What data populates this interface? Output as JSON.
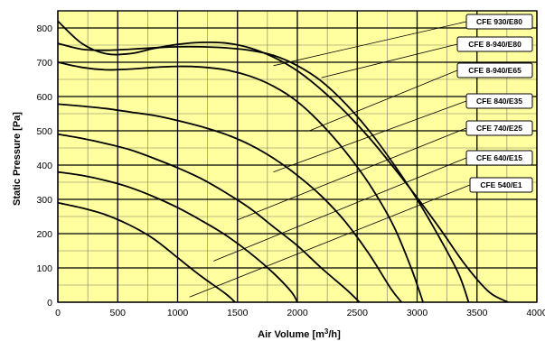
{
  "chart_data": {
    "type": "line",
    "title": "",
    "xlabel_main": "Air Volume [m",
    "xlabel_sup": "3",
    "xlabel_tail": "/h]",
    "ylabel": "Static Pressure [Pa]",
    "xlim": [
      0,
      4000
    ],
    "ylim": [
      0,
      850
    ],
    "x_ticks": [
      0,
      500,
      1000,
      1500,
      2000,
      2500,
      3000,
      3500,
      4000
    ],
    "x_tick_labels": [
      "0",
      "500",
      "1000",
      "1500",
      "2000",
      "2500",
      "3000",
      "3500",
      "4000"
    ],
    "y_ticks": [
      0,
      100,
      200,
      300,
      400,
      500,
      600,
      700,
      800
    ],
    "y_tick_labels": [
      "0",
      "100",
      "200",
      "300",
      "400",
      "500",
      "600",
      "700",
      "800"
    ],
    "minor_grid_x_step": 250,
    "minor_grid_y_step": 50,
    "grid": true,
    "plot_background": "#ffffa0",
    "series": [
      {
        "name": "CFE 930/E80",
        "leader": [
          1800,
          690
        ],
        "points": [
          [
            0,
            820
          ],
          [
            200,
            755
          ],
          [
            400,
            725
          ],
          [
            600,
            725
          ],
          [
            800,
            740
          ],
          [
            1000,
            752
          ],
          [
            1200,
            758
          ],
          [
            1400,
            756
          ],
          [
            1600,
            742
          ],
          [
            1800,
            715
          ],
          [
            2000,
            675
          ],
          [
            2200,
            620
          ],
          [
            2400,
            555
          ],
          [
            2600,
            480
          ],
          [
            2800,
            395
          ],
          [
            3000,
            305
          ],
          [
            3200,
            210
          ],
          [
            3400,
            110
          ],
          [
            3600,
            30
          ],
          [
            3760,
            0
          ]
        ]
      },
      {
        "name": "CFE 8-940/E80",
        "leader": [
          2200,
          655
        ],
        "points": [
          [
            0,
            755
          ],
          [
            200,
            738
          ],
          [
            400,
            735
          ],
          [
            600,
            738
          ],
          [
            800,
            742
          ],
          [
            1000,
            745
          ],
          [
            1200,
            745
          ],
          [
            1400,
            742
          ],
          [
            1600,
            735
          ],
          [
            1800,
            720
          ],
          [
            2000,
            690
          ],
          [
            2200,
            645
          ],
          [
            2400,
            580
          ],
          [
            2600,
            500
          ],
          [
            2800,
            405
          ],
          [
            3000,
            300
          ],
          [
            3200,
            180
          ],
          [
            3350,
            80
          ],
          [
            3430,
            0
          ]
        ]
      },
      {
        "name": "CFE 8-940/E65",
        "leader": [
          2100,
          500
        ],
        "points": [
          [
            0,
            700
          ],
          [
            200,
            685
          ],
          [
            400,
            678
          ],
          [
            600,
            680
          ],
          [
            800,
            685
          ],
          [
            1000,
            688
          ],
          [
            1200,
            686
          ],
          [
            1400,
            678
          ],
          [
            1600,
            660
          ],
          [
            1800,
            630
          ],
          [
            2000,
            585
          ],
          [
            2200,
            520
          ],
          [
            2400,
            440
          ],
          [
            2600,
            345
          ],
          [
            2800,
            225
          ],
          [
            2950,
            100
          ],
          [
            3050,
            0
          ]
        ]
      },
      {
        "name": "CFE 840/E35",
        "leader": [
          1800,
          380
        ],
        "points": [
          [
            0,
            578
          ],
          [
            200,
            572
          ],
          [
            400,
            565
          ],
          [
            600,
            555
          ],
          [
            800,
            545
          ],
          [
            1000,
            530
          ],
          [
            1200,
            512
          ],
          [
            1400,
            490
          ],
          [
            1600,
            460
          ],
          [
            1800,
            420
          ],
          [
            2000,
            370
          ],
          [
            2200,
            310
          ],
          [
            2400,
            235
          ],
          [
            2600,
            140
          ],
          [
            2780,
            40
          ],
          [
            2870,
            0
          ]
        ]
      },
      {
        "name": "CFE 740/E25",
        "leader": [
          1500,
          240
        ],
        "points": [
          [
            0,
            490
          ],
          [
            200,
            478
          ],
          [
            400,
            463
          ],
          [
            600,
            445
          ],
          [
            800,
            420
          ],
          [
            1000,
            392
          ],
          [
            1200,
            360
          ],
          [
            1400,
            320
          ],
          [
            1600,
            275
          ],
          [
            1800,
            220
          ],
          [
            2000,
            165
          ],
          [
            2200,
            100
          ],
          [
            2400,
            40
          ],
          [
            2520,
            0
          ]
        ]
      },
      {
        "name": "CFE 640/E15",
        "leader": [
          1300,
          120
        ],
        "points": [
          [
            0,
            380
          ],
          [
            200,
            370
          ],
          [
            400,
            355
          ],
          [
            600,
            335
          ],
          [
            800,
            308
          ],
          [
            1000,
            276
          ],
          [
            1200,
            238
          ],
          [
            1400,
            196
          ],
          [
            1600,
            145
          ],
          [
            1800,
            85
          ],
          [
            1950,
            30
          ],
          [
            2000,
            0
          ]
        ]
      },
      {
        "name": "CFE 540/E1",
        "leader": [
          1100,
          15
        ],
        "points": [
          [
            0,
            290
          ],
          [
            200,
            275
          ],
          [
            400,
            255
          ],
          [
            600,
            225
          ],
          [
            800,
            185
          ],
          [
            1000,
            130
          ],
          [
            1200,
            75
          ],
          [
            1400,
            25
          ],
          [
            1480,
            0
          ]
        ]
      }
    ]
  }
}
